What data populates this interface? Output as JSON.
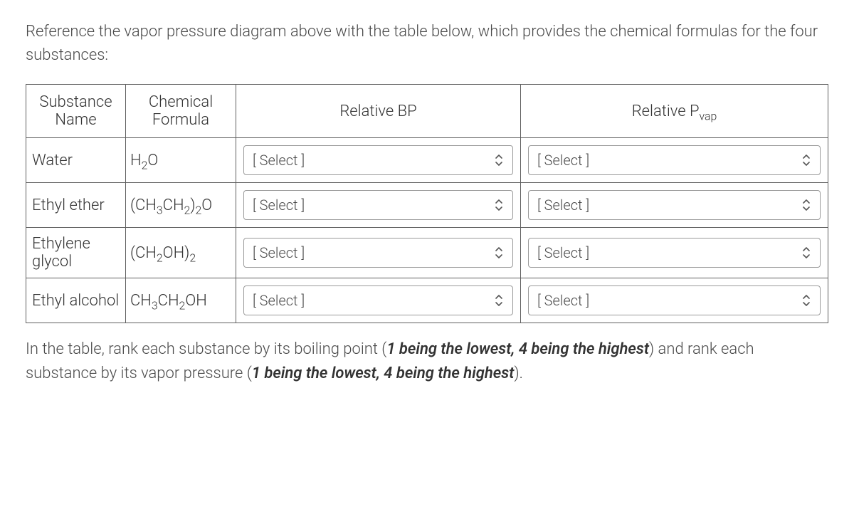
{
  "intro": "Reference the vapor pressure diagram above with the table below, which provides the chemical formulas for the four substances:",
  "headers": {
    "name": "Substance Name",
    "formula": "Chemical Formula",
    "bp": "Relative BP",
    "pvap_prefix": "Relative P",
    "pvap_sub": "vap"
  },
  "select_placeholder": "[ Select ]",
  "rows": [
    {
      "name": "Water",
      "formula_html": "H<sub>2</sub>O"
    },
    {
      "name": "Ethyl ether",
      "formula_html": "(CH<sub>3</sub>CH<sub>2</sub>)<sub>2</sub>O"
    },
    {
      "name": "Ethylene glycol",
      "formula_html": "(CH<sub>2</sub>OH)<sub>2</sub>"
    },
    {
      "name": "Ethyl alcohol",
      "formula_html": "CH<sub>3</sub>CH<sub>2</sub>OH"
    }
  ],
  "outro_parts": {
    "a": "In the table, rank each substance by its boiling point (",
    "b": "1 being the lowest, 4 being the highest",
    "c": ") and rank each substance by its vapor pressure (",
    "d": "1 being the lowest, 4 being the highest",
    "e": ")."
  }
}
